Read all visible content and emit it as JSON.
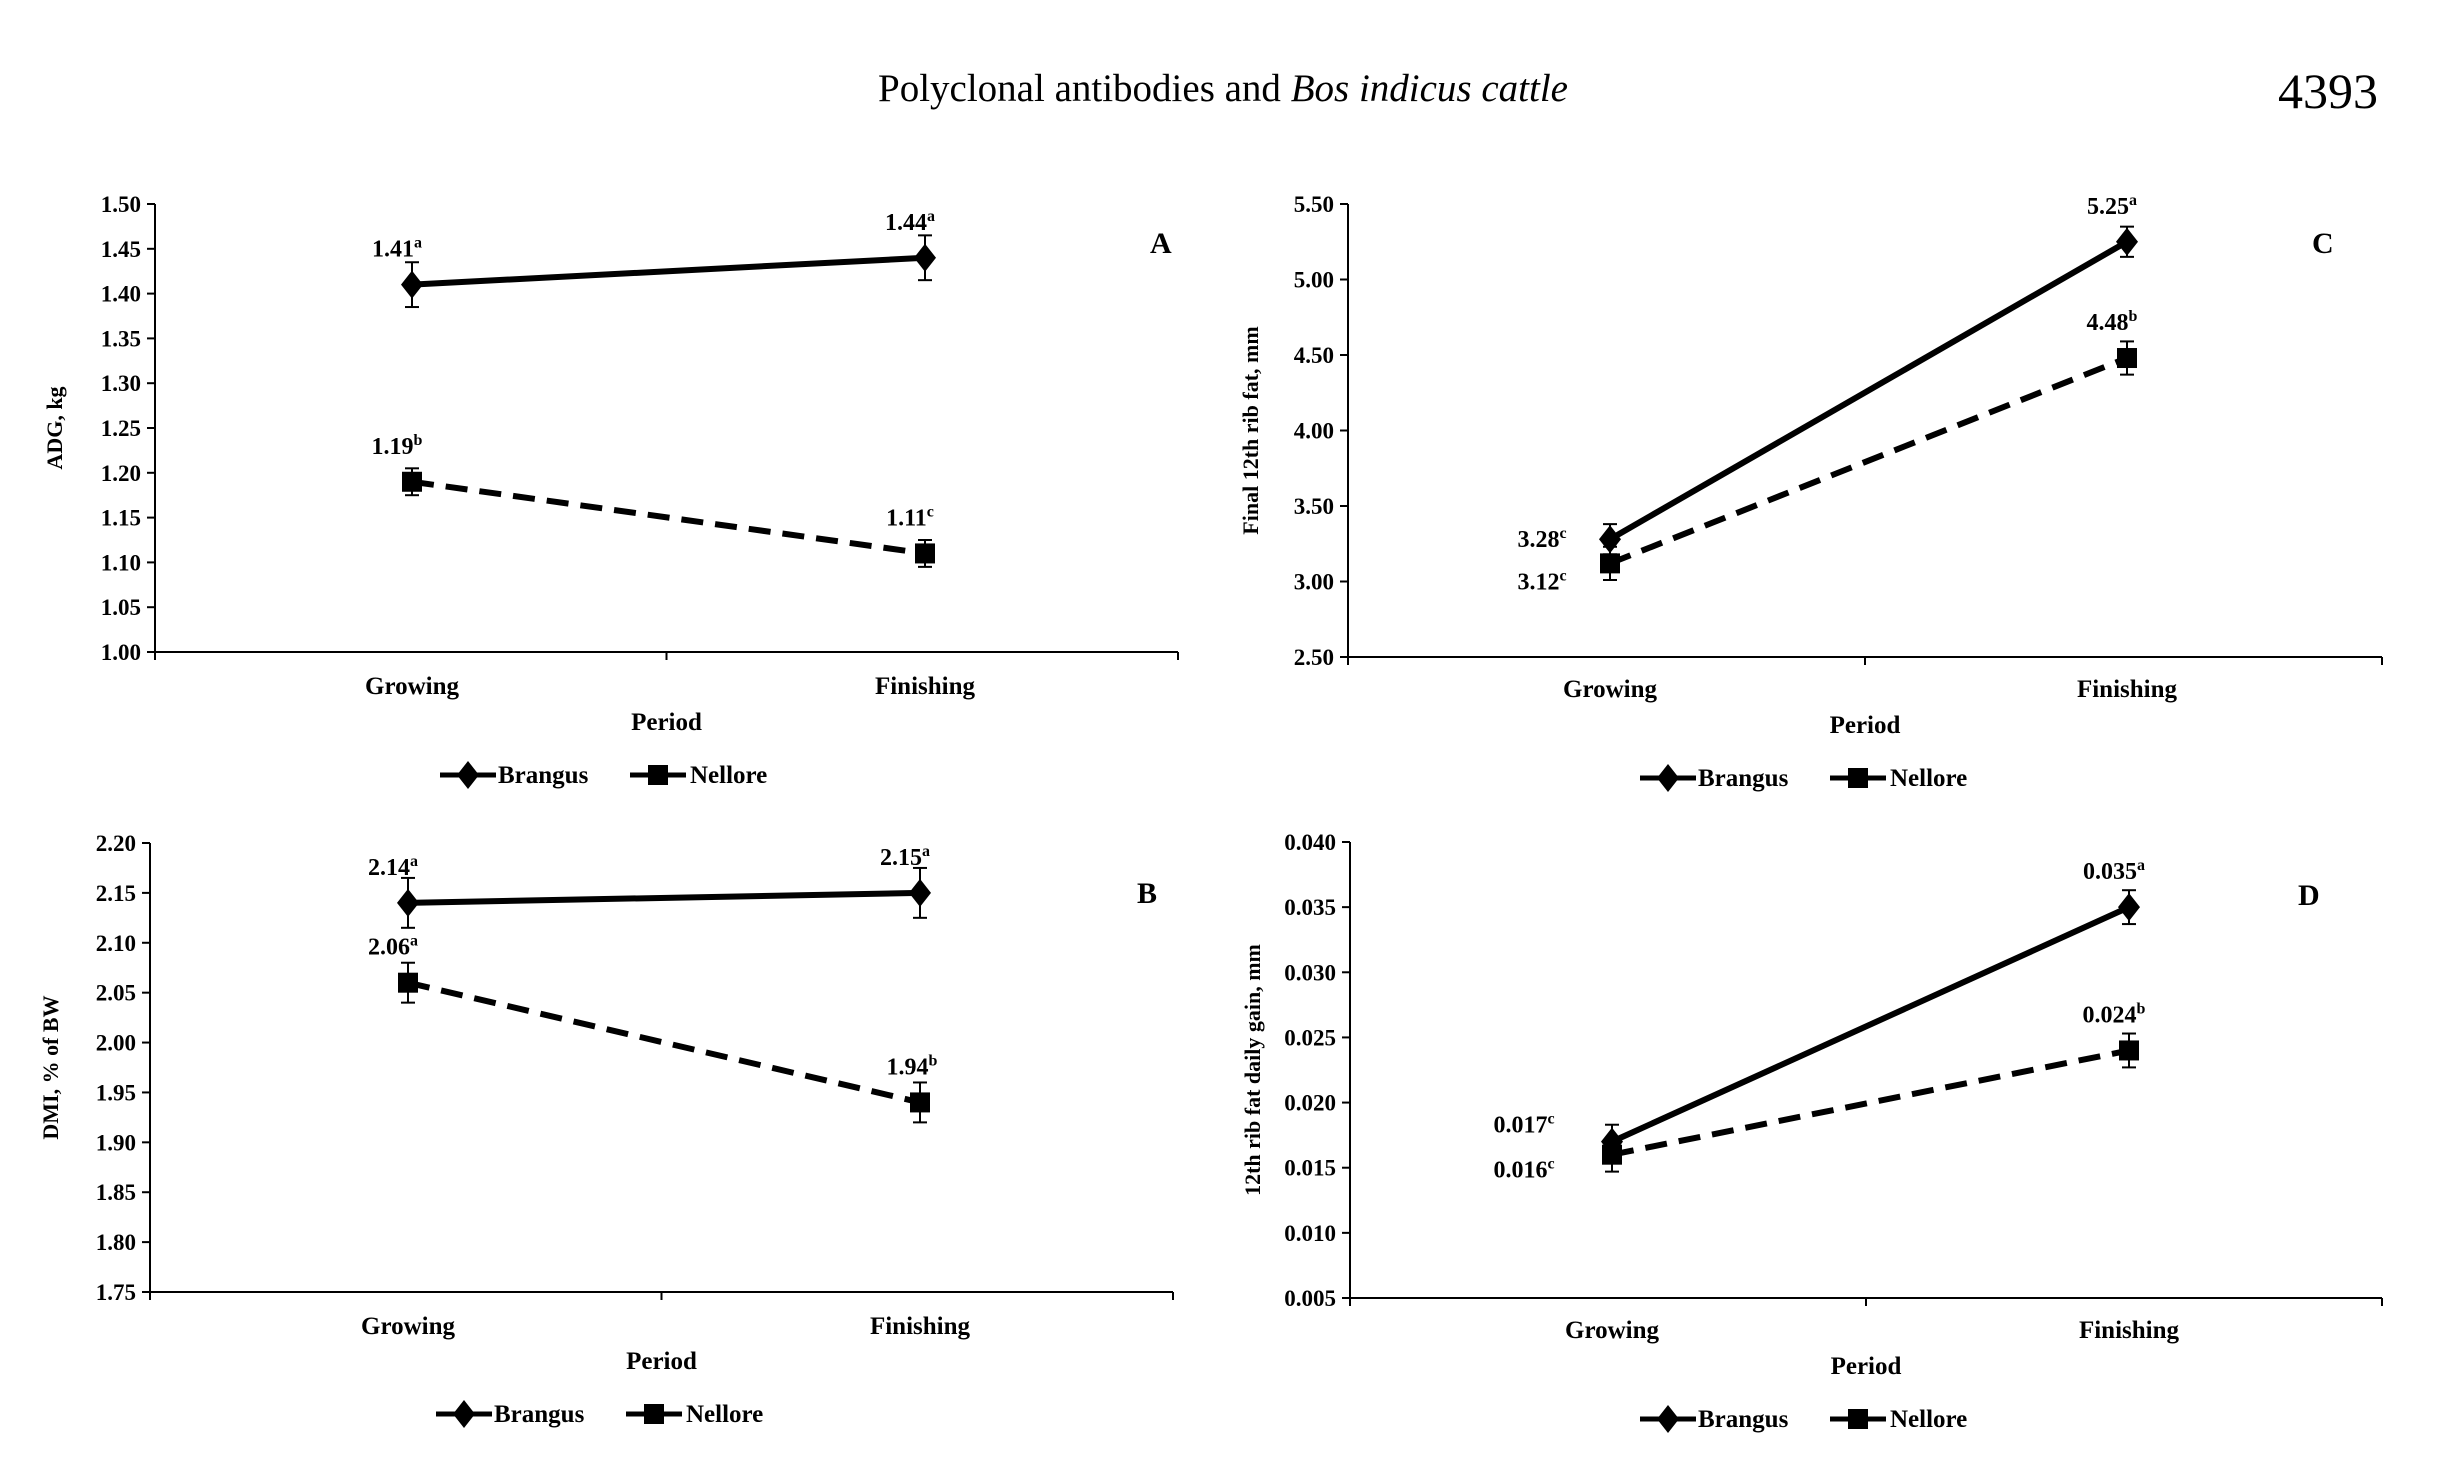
{
  "header": {
    "title_plain": "Polyclonal antibodies and ",
    "title_italic": "Bos indicus cattle",
    "page_number": "4393"
  },
  "colors": {
    "ink": "#000000",
    "background": "#ffffff"
  },
  "chart_data": [
    {
      "type": "line",
      "panel": "A",
      "ylabel": "ADG, kg",
      "xlabel": "Period",
      "categories": [
        "Growing",
        "Finishing"
      ],
      "ylim": [
        1.0,
        1.5
      ],
      "ytick_step": 0.05,
      "ytick_decimals": 2,
      "series": [
        {
          "name": "Brangus",
          "style": "solid",
          "marker": "diamond",
          "values": [
            1.41,
            1.44
          ],
          "errors": [
            0.025,
            0.025
          ],
          "labels": [
            "1.41",
            "1.44"
          ],
          "sups": [
            "a",
            "a"
          ]
        },
        {
          "name": "Nellore",
          "style": "dashed",
          "marker": "square",
          "values": [
            1.19,
            1.11
          ],
          "errors": [
            0.015,
            0.015
          ],
          "labels": [
            "1.19",
            "1.11"
          ],
          "sups": [
            "b",
            "c"
          ]
        }
      ],
      "legend": [
        "Brangus",
        "Nellore"
      ]
    },
    {
      "type": "line",
      "panel": "B",
      "ylabel": "DMI, % of BW",
      "xlabel": "Period",
      "categories": [
        "Growing",
        "Finishing"
      ],
      "ylim": [
        1.75,
        2.2
      ],
      "ytick_step": 0.05,
      "ytick_decimals": 2,
      "series": [
        {
          "name": "Brangus",
          "style": "solid",
          "marker": "diamond",
          "values": [
            2.14,
            2.15
          ],
          "errors": [
            0.025,
            0.025
          ],
          "labels": [
            "2.14",
            "2.15"
          ],
          "sups": [
            "a",
            "a"
          ]
        },
        {
          "name": "Nellore",
          "style": "dashed",
          "marker": "square",
          "values": [
            2.06,
            1.94
          ],
          "errors": [
            0.02,
            0.02
          ],
          "labels": [
            "2.06",
            "1.94"
          ],
          "sups": [
            "a",
            "b"
          ]
        }
      ],
      "legend": [
        "Brangus",
        "Nellore"
      ]
    },
    {
      "type": "line",
      "panel": "C",
      "ylabel": "Final 12th rib fat, mm",
      "xlabel": "Period",
      "categories": [
        "Growing",
        "Finishing"
      ],
      "ylim": [
        2.5,
        5.5
      ],
      "ytick_step": 0.5,
      "ytick_decimals": 2,
      "series": [
        {
          "name": "Brangus",
          "style": "solid",
          "marker": "diamond",
          "values": [
            3.28,
            5.25
          ],
          "errors": [
            0.1,
            0.1
          ],
          "labels": [
            "3.28",
            "5.25"
          ],
          "sups": [
            "c",
            "a"
          ]
        },
        {
          "name": "Nellore",
          "style": "dashed",
          "marker": "square",
          "values": [
            3.12,
            4.48
          ],
          "errors": [
            0.11,
            0.11
          ],
          "labels": [
            "3.12",
            "4.48"
          ],
          "sups": [
            "c",
            "b"
          ]
        }
      ],
      "legend": [
        "Brangus",
        "Nellore"
      ]
    },
    {
      "type": "line",
      "panel": "D",
      "ylabel": "12th rib fat daily gain, mm",
      "xlabel": "Period",
      "categories": [
        "Growing",
        "Finishing"
      ],
      "ylim": [
        0.005,
        0.04
      ],
      "ytick_step": 0.005,
      "ytick_decimals": 3,
      "series": [
        {
          "name": "Brangus",
          "style": "solid",
          "marker": "diamond",
          "values": [
            0.017,
            0.035
          ],
          "errors": [
            0.0013,
            0.0013
          ],
          "labels": [
            "0.017",
            "0.035"
          ],
          "sups": [
            "c",
            "a"
          ]
        },
        {
          "name": "Nellore",
          "style": "dashed",
          "marker": "square",
          "values": [
            0.016,
            0.024
          ],
          "errors": [
            0.0013,
            0.0013
          ],
          "labels": [
            "0.016",
            "0.024"
          ],
          "sups": [
            "c",
            "b"
          ]
        }
      ],
      "legend": [
        "Brangus",
        "Nellore"
      ]
    }
  ]
}
